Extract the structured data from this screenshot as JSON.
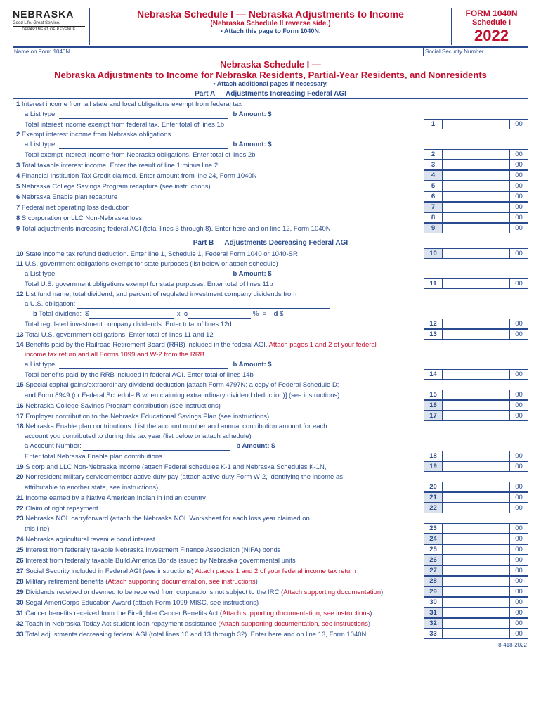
{
  "brand": {
    "name": "NEBRASKA",
    "tagline": "Good Life. Great Service.",
    "dept": "DEPARTMENT OF REVENUE"
  },
  "header": {
    "title": "Nebraska Schedule I — Nebraska Adjustments to Income",
    "sub1": "(Nebraska Schedule II reverse side.)",
    "sub2": "• Attach this page to Form 1040N.",
    "form_line1": "FORM 1040N",
    "form_line2": "Schedule I",
    "year": "2022"
  },
  "name_label": "Name on Form 1040N",
  "ssn_label": "Social Security Number",
  "section": {
    "line1": "Nebraska Schedule I —",
    "line2": "Nebraska Adjustments to Income for Nebraska Residents, Partial-Year Residents, and Nonresidents",
    "line3": "• Attach additional pages if necessary."
  },
  "partA": {
    "title": "Part A — Adjustments Increasing Federal AGI",
    "lines": [
      {
        "n": "1",
        "t": "Interest income from all state and local obligations exempt from federal tax"
      },
      {
        "n": "",
        "t": "a  List type:",
        "amt": "b  Amount: $",
        "sub": true,
        "ulw": 240
      },
      {
        "n": "",
        "t": "Total interest income exempt from federal tax. Enter total of lines 1b",
        "box": "1",
        "z": "00",
        "sub": true,
        "dots": true
      },
      {
        "n": "2",
        "t": "Exempt interest income from Nebraska obligations"
      },
      {
        "n": "",
        "t": "a  List type:",
        "amt": "b  Amount: $",
        "sub": true,
        "ulw": 240
      },
      {
        "n": "",
        "t": "Total exempt interest income from Nebraska obligations. Enter total of lines 2b",
        "box": "2",
        "z": "00",
        "sub": true,
        "dots": true
      },
      {
        "n": "3",
        "t": "Total taxable interest income. Enter the result of line 1 minus line 2",
        "box": "3",
        "z": "00",
        "dots": true
      },
      {
        "n": "4",
        "t": "Financial Institution Tax Credit claimed. Enter amount from line 24, Form 1040N",
        "box": "4",
        "z": "00",
        "shade": true,
        "dots": true
      },
      {
        "n": "5",
        "t": "Nebraska College Savings Program recapture (see instructions)",
        "box": "5",
        "z": "00",
        "dots": true
      },
      {
        "n": "6",
        "t": "Nebraska Enable plan recapture",
        "box": "6",
        "z": "00",
        "dots": true
      },
      {
        "n": "7",
        "t": "Federal net operating loss deduction",
        "box": "7",
        "z": "00",
        "shade": true,
        "dots": true
      },
      {
        "n": "8",
        "t": "S corporation or LLC Non-Nebraska loss",
        "box": "8",
        "z": "00",
        "dots": true
      },
      {
        "n": "9",
        "t": "Total adjustments increasing federal AGI (total lines 3 through 8). Enter here and on line 12, Form 1040N",
        "box": "9",
        "z": "00",
        "shade": true,
        "dots": true
      }
    ]
  },
  "partB": {
    "title": "Part B — Adjustments Decreasing Federal AGI",
    "lines": [
      {
        "n": "10",
        "t": "State income tax refund deduction. Enter line 1, Schedule 1, Federal Form 1040 or 1040-SR",
        "box": "10",
        "z": "00",
        "shade": true,
        "dots": true
      },
      {
        "n": "11",
        "t": "U.S. government obligations exempt for state purposes (list below or attach schedule)"
      },
      {
        "n": "",
        "t": "a  List type:",
        "amt": "b  Amount: $",
        "sub": true,
        "ulw": 240
      },
      {
        "n": "",
        "t": "Total U.S. government obligations exempt for state purposes. Enter total of lines 11b",
        "box": "11",
        "z": "00",
        "sub": true,
        "dots": true
      },
      {
        "n": "12",
        "t": "List fund name, total dividend, and percent of regulated investment company dividends from"
      },
      {
        "n": "",
        "t": "a  U.S. obligation:",
        "sub": true,
        "ulw": 360
      },
      {
        "n": "",
        "t_html": "<b>b</b> Total dividend:&nbsp;&nbsp;$<span class='uline' style='min-width:120px'></span>&nbsp;&nbsp;x&nbsp;&nbsp;<b>c</b><span class='uline' style='min-width:90px'></span>&nbsp;% &nbsp;=&nbsp;&nbsp;&nbsp;&nbsp;<b>d</b> $",
        "sub": true,
        "indent2": true
      },
      {
        "n": "",
        "t": "Total regulated investment company dividends. Enter total of lines 12d",
        "box": "12",
        "z": "00",
        "sub": true,
        "dots": true
      },
      {
        "n": "13",
        "t": "Total U.S. government obligations. Enter total of lines 11 and 12",
        "box": "13",
        "z": "00",
        "dots": true
      },
      {
        "n": "14",
        "t": "Benefits paid by the Railroad Retirement Board (RRB) included in the federal AGI.",
        "red": " Attach pages 1 and 2 of your federal"
      },
      {
        "n": "",
        "t": "",
        "red": "income tax return and all Forms 1099 and W-2 from the RRB.",
        "sub": true
      },
      {
        "n": "",
        "t": "a  List type:",
        "amt": "b  Amount: $",
        "sub": true,
        "ulw": 240
      },
      {
        "n": "",
        "t": "Total benefits paid by the RRB included in federal AGI. Enter total of lines 14b",
        "box": "14",
        "z": "00",
        "sub": true,
        "dots": true
      },
      {
        "n": "15",
        "t": "Special capital gains/extraordinary dividend deduction [attach Form 4797N; a copy of Federal Schedule D;"
      },
      {
        "n": "",
        "t": "and Form 8949 (or Federal Schedule B when claiming extraordinary dividend deduction)] (see instructions)",
        "box": "15",
        "z": "00",
        "sub": true,
        "dots": true
      },
      {
        "n": "16",
        "t": "Nebraska College Savings Program contribution (see instructions)",
        "box": "16",
        "z": "00",
        "shade": true,
        "dots": true
      },
      {
        "n": "17",
        "t": "Employer contribution to the Nebraska Educational Savings Plan (see instructions)",
        "box": "17",
        "z": "00",
        "shade": true,
        "dots": true
      },
      {
        "n": "18",
        "t": "Nebraska Enable plan contributions. List the account number and annual contribution amount for each"
      },
      {
        "n": "",
        "t": "account you contributed to during this tax year (list below or attach schedule)",
        "sub": true
      },
      {
        "n": "",
        "t": "a  Account Number:",
        "amt": "b  Amount:  $",
        "sub": true,
        "ulw": 210
      },
      {
        "n": "",
        "t": "Enter total Nebraska Enable plan contributions",
        "box": "18",
        "z": "00",
        "sub": true,
        "dots": true
      },
      {
        "n": "19",
        "t": "S corp and LLC Non-Nebraska income (attach Federal schedules K-1 and Nebraska Schedules K-1N,",
        "box": "19",
        "z": "00",
        "shade": true,
        "dots": true
      },
      {
        "n": "20",
        "t": "Nonresident military servicemember active duty pay (attach active duty Form W-2, identifying the income as"
      },
      {
        "n": "",
        "t": "attributable to another state, see instructions)",
        "box": "20",
        "z": "00",
        "sub": true,
        "dots": true
      },
      {
        "n": "21",
        "t": "Income earned by a Native American Indian in Indian country",
        "box": "21",
        "z": "00",
        "shade": true,
        "dots": true
      },
      {
        "n": "22",
        "t": "Claim of right repayment",
        "box": "22",
        "z": "00",
        "shade": true,
        "dots": true
      },
      {
        "n": "23",
        "t": "Nebraska NOL carryforward (attach the Nebraska NOL Worksheet for each loss year claimed on"
      },
      {
        "n": "",
        "t": "this line)",
        "box": "23",
        "z": "00",
        "sub": true,
        "dots": true
      },
      {
        "n": "24",
        "t": "Nebraska agricultural revenue bond interest",
        "box": "24",
        "z": "00",
        "shade": true,
        "dots": true
      },
      {
        "n": "25",
        "t": "Interest from federally taxable Nebraska Investment Finance Association (NIFA) bonds",
        "box": "25",
        "z": "00",
        "dots": true
      },
      {
        "n": "26",
        "t": "Interest from federally taxable Build America Bonds issued by Nebraska governmental units",
        "box": "26",
        "z": "00",
        "shade": true,
        "dots": true
      },
      {
        "n": "27",
        "t": "Social Security included in Federal AGI (see instructions)",
        "red": " Attach pages 1 and 2 of your federal income tax return",
        "box": "27",
        "z": "00",
        "shade": true,
        "dots": true
      },
      {
        "n": "28",
        "t": "Military retirement benefits (",
        "red": "Attach supporting documentation, see instructions",
        "t2": ")",
        "box": "28",
        "z": "00",
        "shade": true,
        "dots": true
      },
      {
        "n": "29",
        "t": "Dividends received or deemed to be received from corporations not subject to the IRC (",
        "red": "Attach supporting documentation",
        "t2": ")",
        "box": "29",
        "z": "00",
        "shade": true,
        "dots": true
      },
      {
        "n": "30",
        "t": "Segal AmeriCorps Education Award (attach Form 1099-MISC, see instructions)",
        "box": "30",
        "z": "00",
        "dots": true
      },
      {
        "n": "31",
        "t": "Cancer benefits received from the Firefighter Cancer Benefits Act (",
        "red": "Attach supporting documentation, see instructions",
        "t2": ")",
        "box": "31",
        "z": "00",
        "shade": true,
        "dots": true
      },
      {
        "n": "32",
        "t": "Teach in Nebraska Today Act student loan repayment assistance (",
        "red": "Attach supporting documentation, see instructions",
        "t2": ")",
        "box": "32",
        "z": "00",
        "shade": true,
        "dots": true
      },
      {
        "n": "33",
        "t": "Total adjustments decreasing federal AGI (total lines 10 and 13 through 32). Enter here and on line 13, Form 1040N",
        "box": "33",
        "z": "00",
        "dots": true
      }
    ]
  },
  "footer": "8-418-2022"
}
